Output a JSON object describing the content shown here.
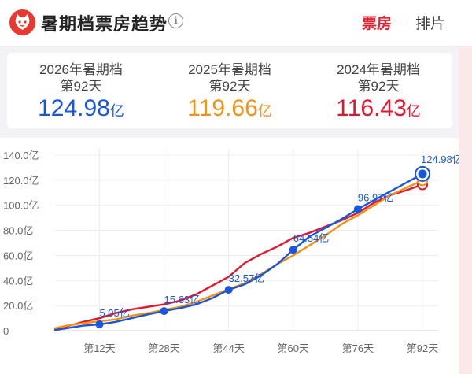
{
  "header": {
    "title": "暑期档票房趋势",
    "info_icon": "info-icon",
    "tabs": [
      {
        "label": "票房",
        "active": true
      },
      {
        "label": "排片",
        "active": false
      }
    ]
  },
  "summary": [
    {
      "label": "2026年暑期档",
      "day": "第92天",
      "value": "124.98",
      "unit": "亿",
      "color": "#1a56db"
    },
    {
      "label": "2025年暑期档",
      "day": "第92天",
      "value": "119.66",
      "unit": "亿",
      "color": "#f39215"
    },
    {
      "label": "2024年暑期档",
      "day": "第92天",
      "value": "116.43",
      "unit": "亿",
      "color": "#e4152e"
    }
  ],
  "chart_data": {
    "type": "line",
    "ylim": [
      0,
      140
    ],
    "yticks": [
      {
        "value": 0,
        "label": "0"
      },
      {
        "value": 20,
        "label": "20.0亿"
      },
      {
        "value": 40,
        "label": "40.0亿"
      },
      {
        "value": 60,
        "label": "60.0亿"
      },
      {
        "value": 80,
        "label": "80.0亿"
      },
      {
        "value": 100,
        "label": "100.0亿"
      },
      {
        "value": 120,
        "label": "120.0亿"
      },
      {
        "value": 140,
        "label": "140.0亿"
      }
    ],
    "xlim": [
      1,
      92
    ],
    "xticks": [
      {
        "value": 12,
        "label": "第12天"
      },
      {
        "value": 28,
        "label": "第28天"
      },
      {
        "value": 44,
        "label": "第44天"
      },
      {
        "value": 60,
        "label": "第60天"
      },
      {
        "value": 76,
        "label": "第76天"
      },
      {
        "value": 92,
        "label": "第92天"
      }
    ],
    "grid": true,
    "series": [
      {
        "name": "2024年暑期档",
        "color": "#e4152e",
        "x": [
          1,
          4,
          8,
          12,
          16,
          20,
          24,
          28,
          32,
          36,
          40,
          44,
          48,
          52,
          56,
          60,
          64,
          68,
          72,
          76,
          80,
          84,
          88,
          92
        ],
        "values": [
          1.5,
          3.5,
          7,
          10,
          14,
          17,
          19,
          21,
          24,
          29,
          36,
          43,
          54,
          61,
          67,
          74,
          78,
          83,
          88,
          94,
          102,
          108,
          112,
          116.43
        ]
      },
      {
        "name": "2025年暑期档",
        "color": "#f39215",
        "x": [
          1,
          4,
          8,
          12,
          16,
          20,
          24,
          28,
          32,
          36,
          40,
          44,
          48,
          52,
          56,
          60,
          64,
          68,
          72,
          76,
          80,
          84,
          88,
          92
        ],
        "values": [
          2,
          4,
          6,
          7.5,
          9,
          12,
          14,
          16.5,
          19,
          23,
          28,
          33,
          38,
          45,
          53,
          60,
          68,
          76,
          85,
          92,
          100,
          108,
          114,
          119.66
        ]
      },
      {
        "name": "2026年暑期档",
        "color": "#1a56db",
        "x": [
          1,
          4,
          8,
          12,
          16,
          20,
          24,
          28,
          32,
          36,
          40,
          44,
          48,
          52,
          56,
          60,
          64,
          68,
          72,
          76,
          80,
          84,
          88,
          92
        ],
        "values": [
          0.5,
          2,
          4,
          5.05,
          7,
          10,
          13,
          15.63,
          18,
          21,
          26,
          32.57,
          37,
          44,
          53,
          64.54,
          75,
          82,
          89,
          96.97,
          104,
          111,
          118,
          124.98
        ]
      }
    ],
    "markers": [
      {
        "x": 12,
        "y": 5.05,
        "label": "5.05亿"
      },
      {
        "x": 28,
        "y": 15.63,
        "label": "15.63亿"
      },
      {
        "x": 44,
        "y": 32.57,
        "label": "32.57亿"
      },
      {
        "x": 60,
        "y": 64.54,
        "label": "64.54亿"
      },
      {
        "x": 76,
        "y": 96.97,
        "label": "96.97亿"
      },
      {
        "x": 92,
        "y": 124.98,
        "label": "124.98亿"
      }
    ]
  }
}
